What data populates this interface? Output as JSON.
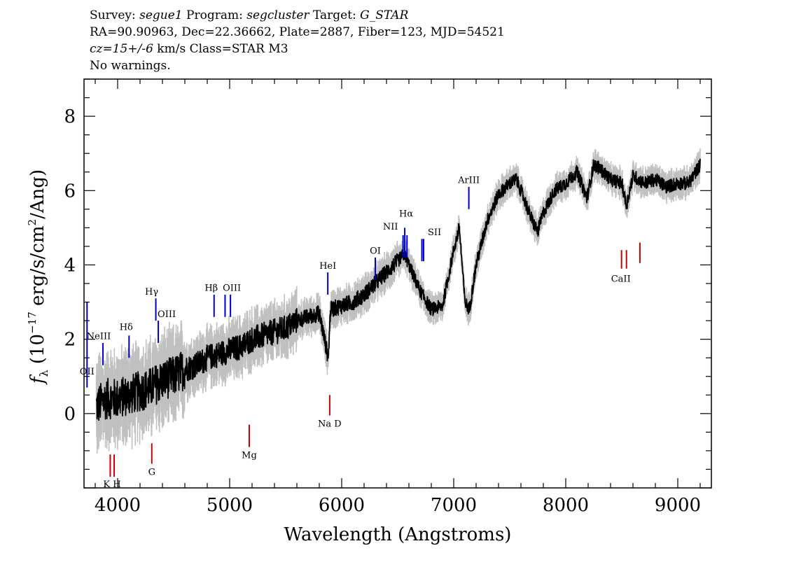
{
  "header": {
    "line1": [
      {
        "t": "Survey: ",
        "i": false
      },
      {
        "t": "segue1",
        "i": true
      },
      {
        "t": " Program: ",
        "i": false
      },
      {
        "t": "segcluster",
        "i": true
      },
      {
        "t": " Target: ",
        "i": false
      },
      {
        "t": "G_STAR",
        "i": true
      }
    ],
    "line2": "RA=90.90963, Dec=22.36662, Plate=2887, Fiber=123, MJD=54521",
    "line3": [
      {
        "t": "cz=15+/-6",
        "i": true
      },
      {
        "t": " km/s Class=STAR M3",
        "i": false
      }
    ],
    "line4": "No warnings."
  },
  "chart_data": {
    "type": "line",
    "xlabel": "Wavelength (Angstroms)",
    "ylabel": "f_λ (10^-17 erg/s/cm^2/Ang)",
    "xlim": [
      3700,
      9300
    ],
    "ylim": [
      -2,
      9
    ],
    "xticks": [
      4000,
      5000,
      6000,
      7000,
      8000,
      9000
    ],
    "yticks": [
      0,
      2,
      4,
      6,
      8
    ],
    "colors": {
      "flux": "#000000",
      "error": "#c0c0c0",
      "emission": "#0000cc",
      "absorption": "#cc0000"
    },
    "series": [
      {
        "x": [
          3810,
          3900,
          4000,
          4100,
          4200,
          4300,
          4400,
          4500,
          4600,
          4700,
          4800,
          4900,
          5000,
          5100,
          5200,
          5300,
          5400,
          5500,
          5600,
          5700,
          5800,
          5880,
          5900,
          6000,
          6100,
          6200,
          6300,
          6400,
          6500,
          6560,
          6600,
          6700,
          6800,
          6900,
          7000,
          7050,
          7100,
          7140,
          7200,
          7300,
          7400,
          7500,
          7560,
          7600,
          7700,
          7750,
          7800,
          7900,
          8000,
          8100,
          8190,
          8250,
          8300,
          8400,
          8500,
          8542,
          8600,
          8700,
          8800,
          8900,
          9000,
          9100,
          9200
        ],
        "y": [
          0.2,
          0.4,
          0.4,
          0.5,
          0.6,
          0.7,
          0.9,
          1.0,
          1.2,
          1.3,
          1.5,
          1.6,
          1.7,
          1.8,
          2.0,
          2.1,
          2.2,
          2.3,
          2.5,
          2.6,
          2.7,
          1.5,
          2.8,
          2.9,
          3.0,
          3.2,
          3.5,
          3.8,
          4.1,
          4.3,
          4.0,
          3.3,
          2.8,
          2.9,
          4.4,
          5.0,
          3.0,
          2.8,
          4.0,
          5.2,
          5.9,
          6.2,
          6.3,
          6.0,
          5.2,
          4.9,
          5.4,
          6.0,
          6.2,
          6.5,
          5.8,
          6.7,
          6.6,
          6.3,
          6.2,
          5.6,
          6.4,
          6.2,
          6.3,
          6.1,
          6.2,
          6.2,
          6.7
        ]
      }
    ],
    "lines": [
      {
        "name": "OII",
        "label": "OII",
        "wave": 3727,
        "kind": "emission"
      },
      {
        "name": "NeIII",
        "label": "NeIII",
        "wave": 3869,
        "kind": "emission"
      },
      {
        "name": "H-delta",
        "label": "Hδ",
        "wave": 4102,
        "kind": "emission"
      },
      {
        "name": "H-gamma",
        "label": "Hγ",
        "wave": 4341,
        "kind": "emission"
      },
      {
        "name": "OIII-4363",
        "label": "OIII",
        "wave": 4363,
        "kind": "emission"
      },
      {
        "name": "H-beta",
        "label": "Hβ",
        "wave": 4861,
        "kind": "emission"
      },
      {
        "name": "OIII-4959",
        "label": "",
        "wave": 4959,
        "kind": "emission"
      },
      {
        "name": "OIII-5007",
        "label": "OIII",
        "wave": 5007,
        "kind": "emission"
      },
      {
        "name": "HeI",
        "label": "HeI",
        "wave": 5876,
        "kind": "emission"
      },
      {
        "name": "OI",
        "label": "OI",
        "wave": 6300,
        "kind": "emission"
      },
      {
        "name": "NII-6548",
        "label": "NII",
        "wave": 6548,
        "kind": "emission"
      },
      {
        "name": "H-alpha",
        "label": "Hα",
        "wave": 6563,
        "kind": "emission"
      },
      {
        "name": "NII-6583",
        "label": "NII",
        "wave": 6583,
        "kind": "emission"
      },
      {
        "name": "SII-6716",
        "label": "SII",
        "wave": 6716,
        "kind": "emission"
      },
      {
        "name": "SII-6731",
        "label": "",
        "wave": 6731,
        "kind": "emission"
      },
      {
        "name": "ArIII",
        "label": "ArIII",
        "wave": 7135,
        "kind": "emission"
      },
      {
        "name": "K",
        "label": "",
        "wave": 3934,
        "kind": "absorption"
      },
      {
        "name": "H",
        "label": "",
        "wave": 3969,
        "kind": "absorption"
      },
      {
        "name": "KH",
        "label": "K H",
        "wave": 3950,
        "kind": "absorption-label"
      },
      {
        "name": "G",
        "label": "G",
        "wave": 4305,
        "kind": "absorption"
      },
      {
        "name": "Mg",
        "label": "Mg",
        "wave": 5175,
        "kind": "absorption"
      },
      {
        "name": "NaD",
        "label": "Na D",
        "wave": 5893,
        "kind": "absorption"
      },
      {
        "name": "CaII-8498",
        "label": "",
        "wave": 8498,
        "kind": "absorption"
      },
      {
        "name": "CaII-8542",
        "label": "CaII",
        "wave": 8542,
        "kind": "absorption"
      },
      {
        "name": "CaII-8662",
        "label": "",
        "wave": 8662,
        "kind": "absorption"
      }
    ]
  }
}
